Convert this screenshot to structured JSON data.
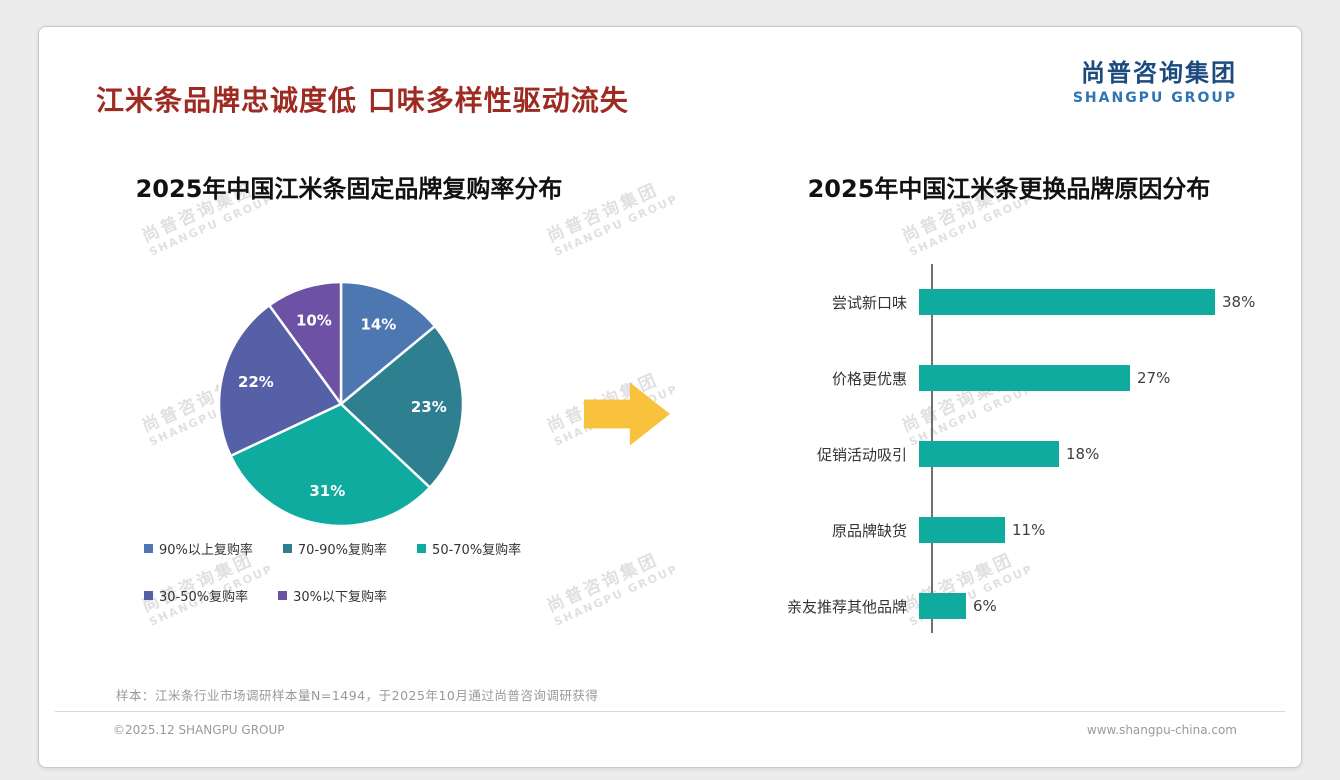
{
  "header": {
    "title": "江米条品牌忠诚度低 口味多样性驱动流失",
    "logo_cn": "尚普咨询集团",
    "logo_en": "SHANGPU GROUP"
  },
  "watermark": {
    "line1": "尚普咨询集团",
    "line2": "SHANGPU GROUP"
  },
  "arrow": {
    "color": "#F9C23C"
  },
  "chart_data": [
    {
      "type": "pie",
      "title": "2025年中国江米条固定品牌复购率分布",
      "categories": [
        "90%以上复购率",
        "70-90%复购率",
        "50-70%复购率",
        "30-50%复购率",
        "30%以下复购率"
      ],
      "values": [
        14,
        23,
        31,
        22,
        10
      ],
      "unit": "%",
      "colors": [
        "#4C77B0",
        "#2E7F90",
        "#0FAB9E",
        "#5560A6",
        "#6C51A4"
      ],
      "legend_position": "bottom",
      "value_label_color": "#ffffff"
    },
    {
      "type": "bar",
      "orientation": "horizontal",
      "title": "2025年中国江米条更换品牌原因分布",
      "categories": [
        "尝试新口味",
        "价格更优惠",
        "促销活动吸引",
        "原品牌缺货",
        "亲友推荐其他品牌"
      ],
      "values": [
        38,
        27,
        18,
        11,
        6
      ],
      "unit": "%",
      "bar_color": "#0FAB9E",
      "xlim": [
        0,
        40
      ],
      "grid": false
    }
  ],
  "footer": {
    "sample_note": "样本：江米条行业市场调研样本量N=1494，于2025年10月通过尚普咨询调研获得",
    "copyright": "©2025.12 SHANGPU GROUP",
    "website": "www.shangpu-china.com"
  }
}
